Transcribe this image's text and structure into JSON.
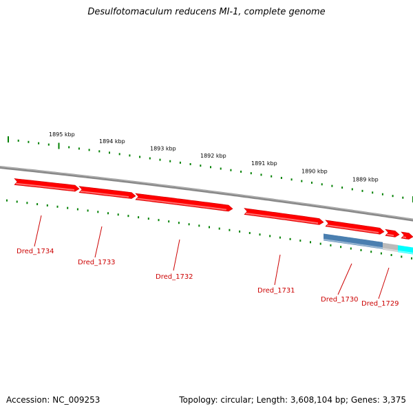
{
  "title": "Desulfotomaculum reducens MI-1, complete genome",
  "footer": {
    "accession": "Accession: NC_009253",
    "stats": "Topology: circular; Length: 3,608,104 bp; Genes: 3,375"
  },
  "ruler_labels": [
    "1895 kbp",
    "1894 kbp",
    "1893 kbp",
    "1892 kbp",
    "1891 kbp",
    "1890 kbp",
    "1889 kbp"
  ],
  "genes": [
    {
      "id": "Dred_1734",
      "strand": "forward",
      "color": "#ff0000"
    },
    {
      "id": "Dred_1733",
      "strand": "forward",
      "color": "#ff0000"
    },
    {
      "id": "Dred_1732",
      "strand": "forward",
      "color": "#ff0000"
    },
    {
      "id": "Dred_1731",
      "strand": "forward",
      "color": "#ff0000"
    },
    {
      "id": "Dred_1730",
      "strand": "forward",
      "color": "#ff0000"
    },
    {
      "id": "Dred_1729",
      "strand": "forward",
      "color": "#ff0000"
    }
  ],
  "extra_tracks": [
    {
      "name": "steelblue-feature",
      "color": "#4a7fb0"
    },
    {
      "name": "grey-feature",
      "color": "#bbbbbb"
    },
    {
      "name": "cyan-feature",
      "color": "#00ffff"
    }
  ],
  "colors": {
    "backbone": "#888888",
    "ruler_ticks": "#008000",
    "gene_fill": "#ff0000",
    "gene_label": "#cc0000"
  }
}
